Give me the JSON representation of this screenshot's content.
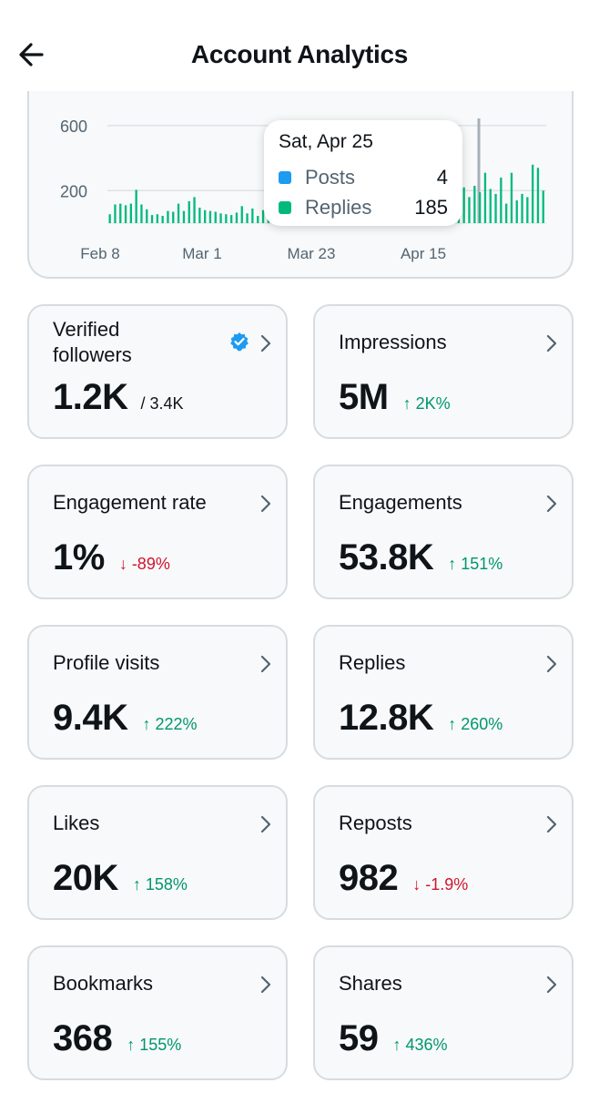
{
  "header": {
    "title": "Account Analytics"
  },
  "chart_data": {
    "type": "bar",
    "yticks": [
      "200",
      "600"
    ],
    "xticks": [
      "Feb 8",
      "Mar 1",
      "Mar 23",
      "Apr 15"
    ],
    "ylim": [
      0,
      650
    ],
    "grid": true,
    "series_colors": {
      "posts": "#1d9bf0",
      "replies": "#00ba7c"
    },
    "series": [
      {
        "key": "replies",
        "values": [
          55,
          115,
          120,
          110,
          120,
          205,
          115,
          85,
          50,
          55,
          45,
          75,
          70,
          120,
          75,
          135,
          160,
          95,
          80,
          75,
          70,
          60,
          55,
          50,
          65,
          105,
          60,
          90,
          45,
          80,
          280,
          250,
          130,
          220,
          240,
          200,
          280,
          230,
          130,
          120,
          180,
          220,
          150,
          175,
          130,
          140,
          185,
          145,
          150,
          160,
          230,
          180,
          160,
          160,
          340,
          210,
          280,
          110,
          150,
          130,
          180,
          195,
          70,
          110,
          160,
          240,
          400,
          220,
          160,
          230,
          190,
          310,
          210,
          180,
          280,
          120,
          310,
          140,
          180,
          160,
          360,
          340,
          200
        ]
      }
    ],
    "tooltip": {
      "date": "Sat, Apr 25",
      "rows": [
        {
          "label": "Posts",
          "value": "4",
          "color": "#1d9bf0"
        },
        {
          "label": "Replies",
          "value": "185",
          "color": "#00ba7c"
        }
      ]
    }
  },
  "cards": [
    {
      "id": "verified-followers",
      "label": "Verified followers",
      "value": "1.2K",
      "sub": "/ 3.4K",
      "verified": true
    },
    {
      "id": "impressions",
      "label": "Impressions",
      "value": "5M",
      "delta": "↑ 2K%",
      "dir": "up"
    },
    {
      "id": "engagement-rate",
      "label": "Engagement rate",
      "value": "1%",
      "delta": "↓ -89%",
      "dir": "down"
    },
    {
      "id": "engagements",
      "label": "Engagements",
      "value": "53.8K",
      "delta": "↑ 151%",
      "dir": "up"
    },
    {
      "id": "profile-visits",
      "label": "Profile visits",
      "value": "9.4K",
      "delta": "↑ 222%",
      "dir": "up"
    },
    {
      "id": "replies",
      "label": "Replies",
      "value": "12.8K",
      "delta": "↑ 260%",
      "dir": "up"
    },
    {
      "id": "likes",
      "label": "Likes",
      "value": "20K",
      "delta": "↑ 158%",
      "dir": "up"
    },
    {
      "id": "reposts",
      "label": "Reposts",
      "value": "982",
      "delta": "↓ -1.9%",
      "dir": "down"
    },
    {
      "id": "bookmarks",
      "label": "Bookmarks",
      "value": "368",
      "delta": "↑ 155%",
      "dir": "up"
    },
    {
      "id": "shares",
      "label": "Shares",
      "value": "59",
      "delta": "↑ 436%",
      "dir": "up"
    }
  ]
}
